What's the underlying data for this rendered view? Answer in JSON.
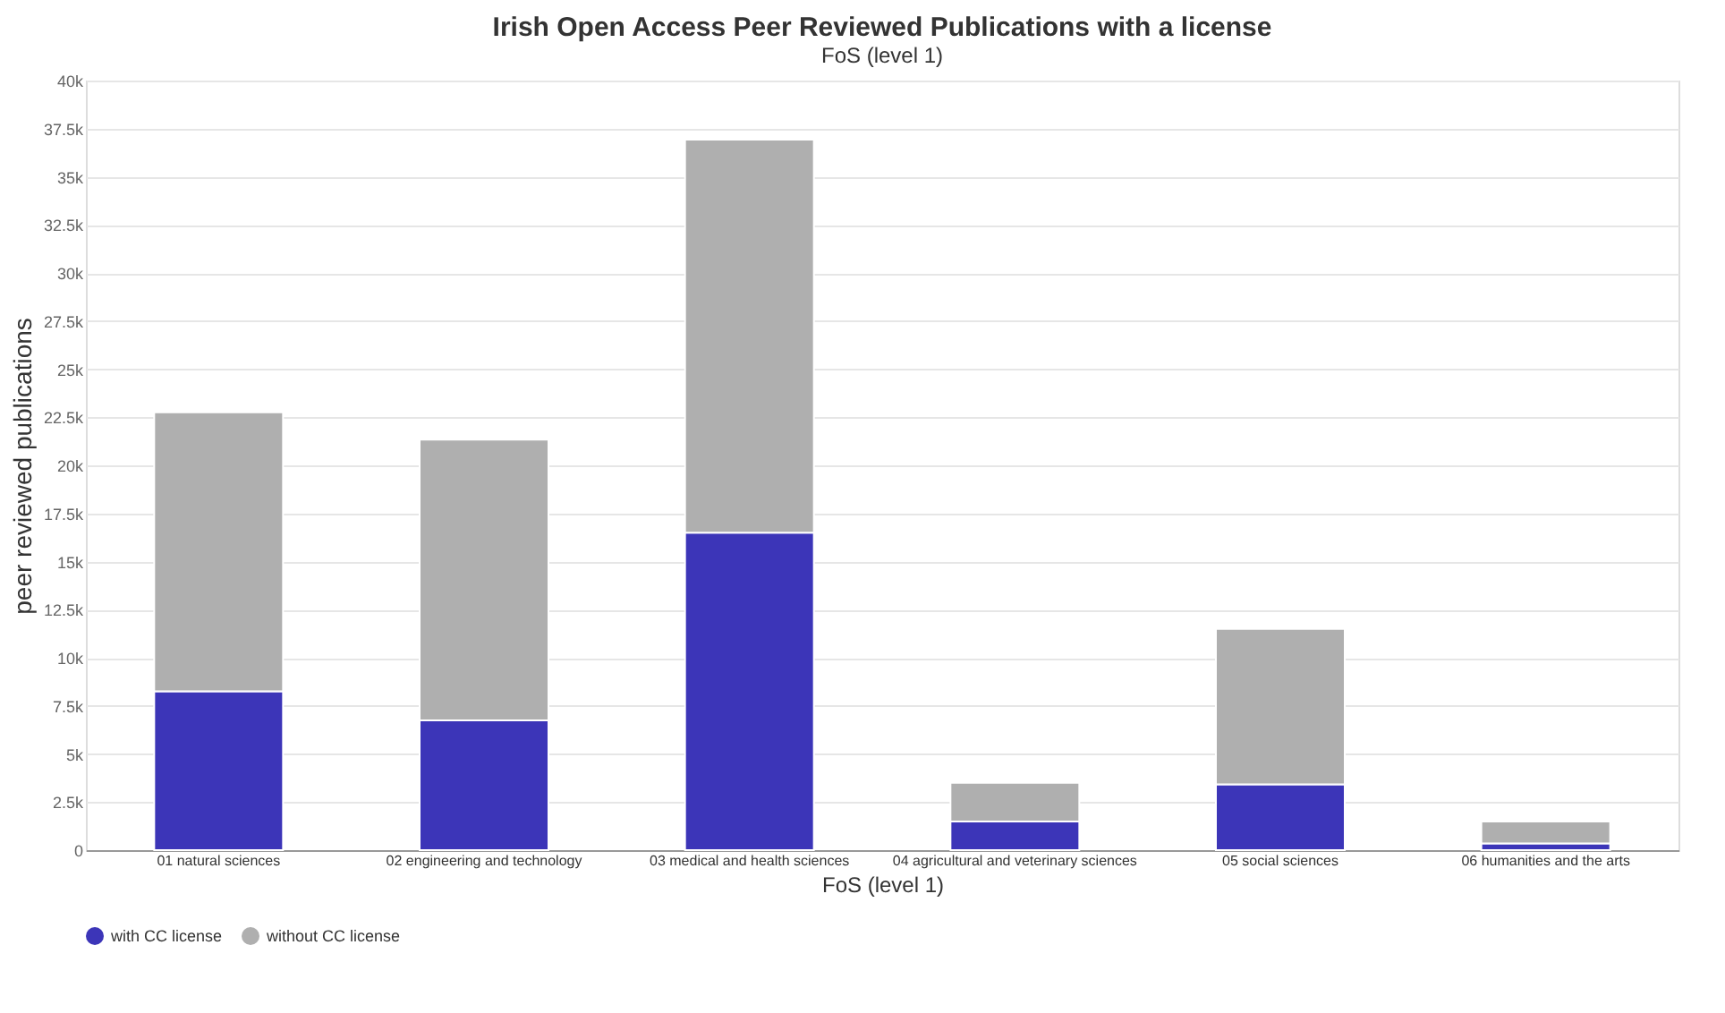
{
  "chart_data": {
    "type": "bar",
    "title": "Irish Open Access Peer Reviewed Publications with a license",
    "subtitle": "FoS (level 1)",
    "xlabel": "FoS (level 1)",
    "ylabel": "peer reviewed publications",
    "categories": [
      "01 natural sciences",
      "02 engineering and technology",
      "03 medical and health sciences",
      "04 agricultural and veterinary sciences",
      "05 social sciences",
      "06 humanities and the arts"
    ],
    "stacked": true,
    "series": [
      {
        "name": "with CC license",
        "color": "#3c35b8",
        "values": [
          8260,
          6740,
          16500,
          1490,
          3420,
          350
        ]
      },
      {
        "name": "without CC license",
        "color": "#afafaf",
        "values": [
          14500,
          14600,
          20430,
          2010,
          8080,
          1140
        ]
      }
    ],
    "ylim": [
      0,
      40000
    ],
    "yticks": [
      0,
      {
        "value": 2500,
        "label": "2.5k"
      },
      {
        "value": 5000,
        "label": "5k"
      },
      {
        "value": 7500,
        "label": "7.5k"
      },
      {
        "value": 10000,
        "label": "10k"
      },
      {
        "value": 12500,
        "label": "12.5k"
      },
      {
        "value": 15000,
        "label": "15k"
      },
      {
        "value": 17500,
        "label": "17.5k"
      },
      {
        "value": 20000,
        "label": "20k"
      },
      {
        "value": 22500,
        "label": "22.5k"
      },
      {
        "value": 25000,
        "label": "25k"
      },
      {
        "value": 27500,
        "label": "27.5k"
      },
      {
        "value": 30000,
        "label": "30k"
      },
      {
        "value": 32500,
        "label": "32.5k"
      },
      {
        "value": 35000,
        "label": "35k"
      },
      {
        "value": 37500,
        "label": "37.5k"
      },
      {
        "value": 40000,
        "label": "40k"
      }
    ],
    "grid": "y",
    "legend": "bottom"
  }
}
